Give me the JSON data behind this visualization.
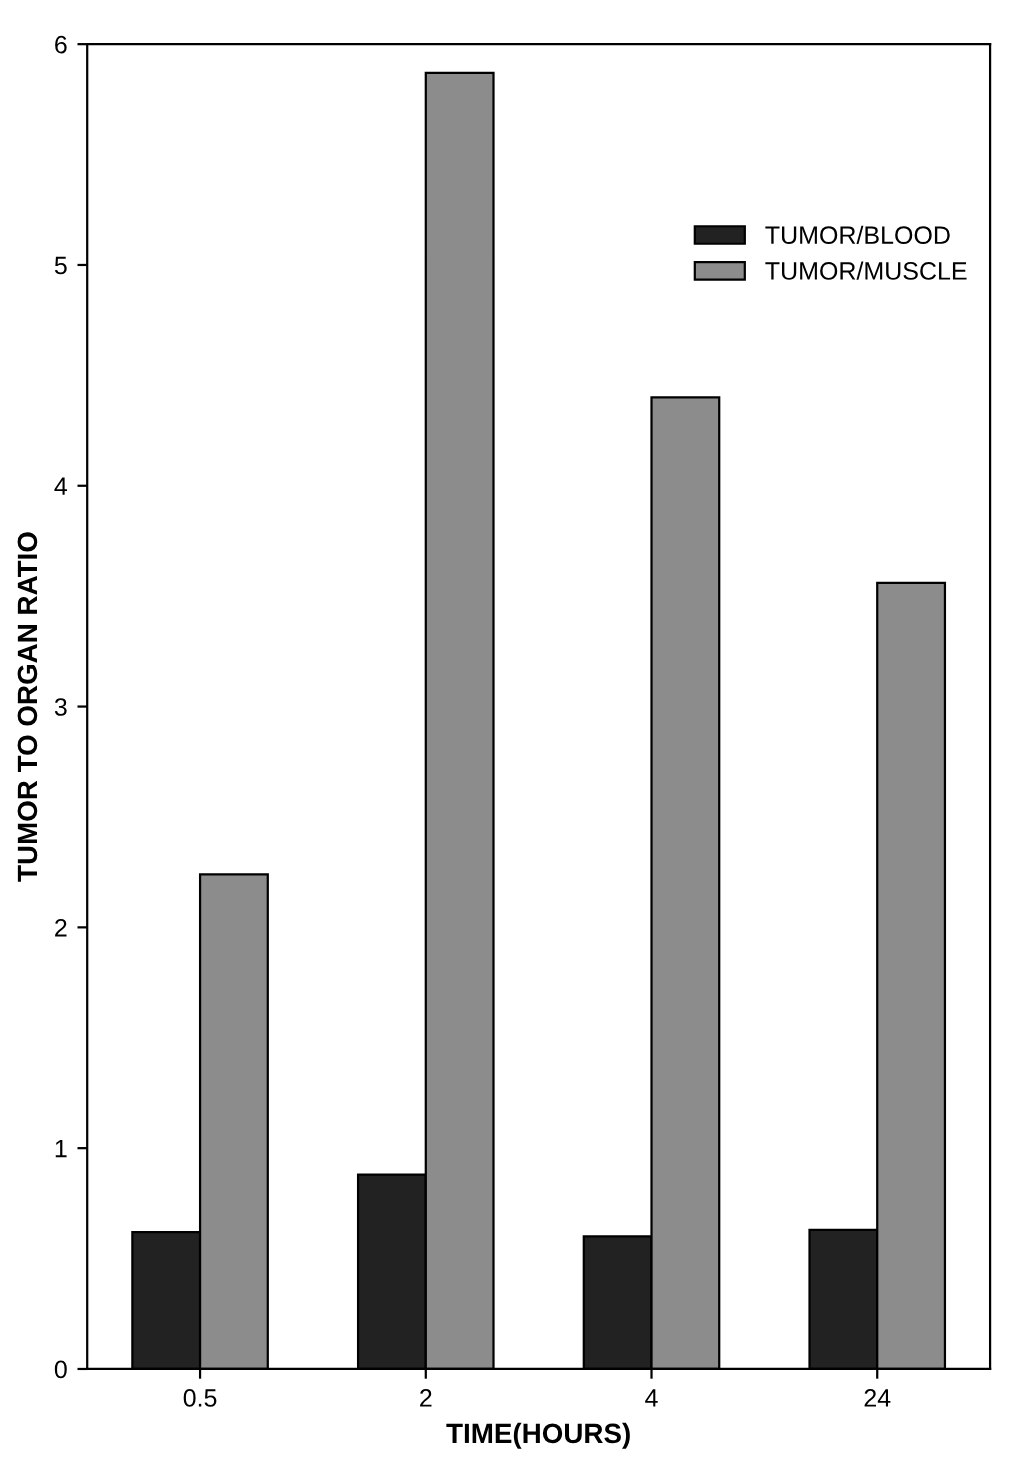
{
  "chart_data": {
    "type": "bar",
    "xlabel": "TIME(HOURS)",
    "ylabel": "TUMOR TO ORGAN RATIO",
    "categories": [
      "0.5",
      "2",
      "4",
      "24"
    ],
    "series": [
      {
        "name": "TUMOR/BLOOD",
        "color": "#222222",
        "values": [
          0.62,
          0.88,
          0.6,
          0.63
        ]
      },
      {
        "name": "TUMOR/MUSCLE",
        "color": "#8c8c8c",
        "values": [
          2.24,
          5.87,
          4.4,
          3.56
        ]
      }
    ],
    "ylim": [
      0,
      6
    ],
    "yticks": [
      0,
      1,
      2,
      3,
      4,
      5,
      6
    ],
    "grid": false,
    "legend": "top right"
  }
}
